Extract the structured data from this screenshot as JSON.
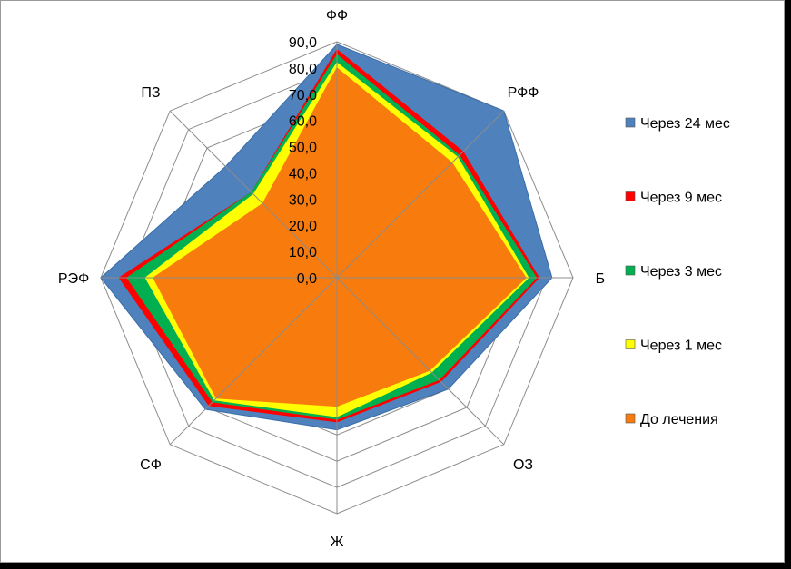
{
  "chart_data": {
    "type": "radar",
    "title": "",
    "categories": [
      "ФФ",
      "РФФ",
      "Б",
      "ОЗ",
      "Ж",
      "СФ",
      "РЭФ",
      "ПЗ"
    ],
    "rlim": [
      0,
      90
    ],
    "ticks": [
      "0,0",
      "10,0",
      "20,0",
      "30,0",
      "40,0",
      "50,0",
      "60,0",
      "70,0",
      "80,0",
      "90,0"
    ],
    "grid": true,
    "legend_position": "right",
    "series": [
      {
        "name": "Через 24 мес",
        "color": "#4f81bd",
        "values": [
          89,
          90,
          82,
          60,
          58,
          71,
          90,
          60
        ]
      },
      {
        "name": "Через 9 мес",
        "color": "#ff0000",
        "values": [
          87,
          68,
          77,
          56,
          55,
          69,
          83,
          46
        ]
      },
      {
        "name": "Через 3 мес",
        "color": "#00b050",
        "values": [
          85,
          66,
          76,
          55,
          54,
          67,
          80,
          46
        ]
      },
      {
        "name": "Через 1 мес",
        "color": "#ffff00",
        "values": [
          82,
          65,
          73,
          51,
          53,
          66,
          73,
          45
        ]
      },
      {
        "name": "До лечения",
        "color": "#f77c0d",
        "values": [
          80,
          62,
          72,
          50,
          49,
          65,
          70,
          40
        ]
      }
    ]
  }
}
